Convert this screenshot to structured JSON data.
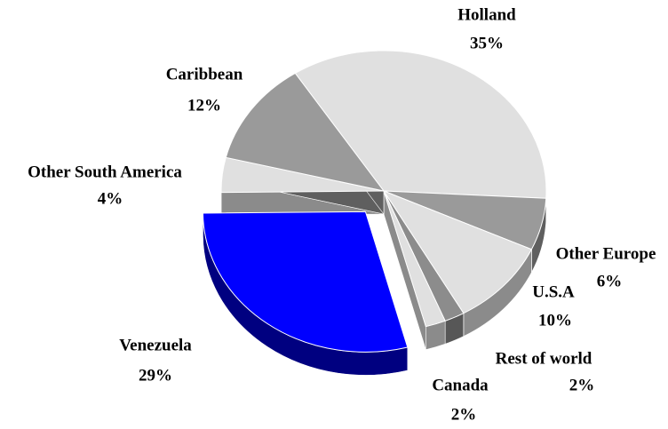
{
  "chart_data": {
    "type": "pie",
    "categories": [
      "Holland",
      "Other Europe",
      "U.S.A",
      "Rest of world",
      "Canada",
      "Venezuela",
      "Other South America",
      "Caribbean"
    ],
    "values": [
      35,
      6,
      10,
      2,
      2,
      29,
      4,
      12
    ],
    "value_labels": [
      "35%",
      "6%",
      "10%",
      "2%",
      "2%",
      "29%",
      "4%",
      "12%"
    ],
    "colors": [
      "#e0e0e0",
      "#9a9a9a",
      "#e0e0e0",
      "#8c8c8c",
      "#e0e0e0",
      "#0000ff",
      "#e0e0e0",
      "#9a9a9a"
    ],
    "explode": "Venezuela"
  }
}
